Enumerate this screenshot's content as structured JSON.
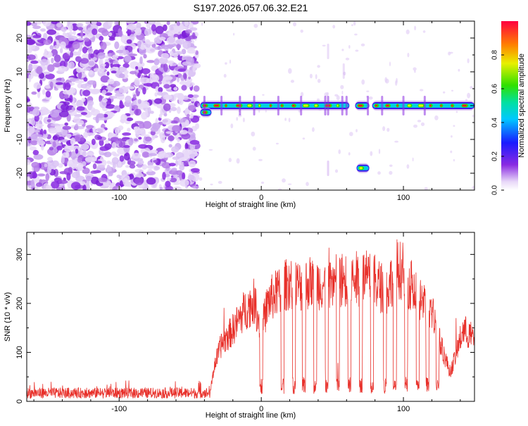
{
  "title": "S197.2026.057.06.32.E21",
  "chart_data": [
    {
      "type": "heatmap",
      "name": "spectrogram",
      "xlabel": "Height of straight line (km)",
      "ylabel": "Frequency (Hz)",
      "xlim": [
        -165,
        150
      ],
      "ylim": [
        -25,
        25
      ],
      "x_ticks": [
        -100,
        0,
        100
      ],
      "y_ticks": [
        -20,
        -10,
        0,
        10,
        20
      ],
      "noise_region": [
        -165,
        -45
      ],
      "signal_tracks": [
        {
          "x_start": -43,
          "x_end": 62,
          "freq": 0
        },
        {
          "x_start": -43,
          "x_end": -35,
          "freq": -2
        },
        {
          "x_start": 66,
          "x_end": 76,
          "freq": 0
        },
        {
          "x_start": 67,
          "x_end": 76,
          "freq": -18.5
        },
        {
          "x_start": 78,
          "x_end": 150,
          "freq": 0
        }
      ],
      "colorbar": {
        "label": "Normalized spectral amplitude",
        "ticks": [
          0.0,
          0.2,
          0.4,
          0.6,
          0.8
        ],
        "range": [
          0,
          1
        ]
      }
    },
    {
      "type": "line",
      "name": "snr",
      "xlabel": "Height of straight line (km)",
      "ylabel": "SNR (10 * v/v)",
      "xlim": [
        -165,
        150
      ],
      "ylim": [
        0,
        345
      ],
      "x_ticks": [
        -100,
        0,
        100
      ],
      "y_ticks": [
        0,
        100,
        200,
        300
      ],
      "series_color": "#e8302a",
      "envelope": [
        [
          -165,
          14
        ],
        [
          -100,
          14
        ],
        [
          -50,
          14
        ],
        [
          -36,
          18
        ],
        [
          -33,
          75
        ],
        [
          -28,
          120
        ],
        [
          -20,
          150
        ],
        [
          -12,
          190
        ],
        [
          -5,
          210
        ],
        [
          0,
          150
        ],
        [
          5,
          210
        ],
        [
          12,
          230
        ],
        [
          20,
          250
        ],
        [
          28,
          240
        ],
        [
          35,
          250
        ],
        [
          45,
          245
        ],
        [
          55,
          255
        ],
        [
          65,
          255
        ],
        [
          72,
          260
        ],
        [
          80,
          250
        ],
        [
          88,
          230
        ],
        [
          95,
          280
        ],
        [
          100,
          270
        ],
        [
          108,
          230
        ],
        [
          115,
          200
        ],
        [
          120,
          190
        ],
        [
          126,
          120
        ],
        [
          133,
          60
        ],
        [
          142,
          150
        ],
        [
          150,
          130
        ]
      ],
      "dips": [
        0,
        15,
        23,
        30,
        38,
        46,
        54,
        62,
        70,
        78,
        87,
        94,
        102,
        110,
        117,
        124
      ]
    }
  ]
}
